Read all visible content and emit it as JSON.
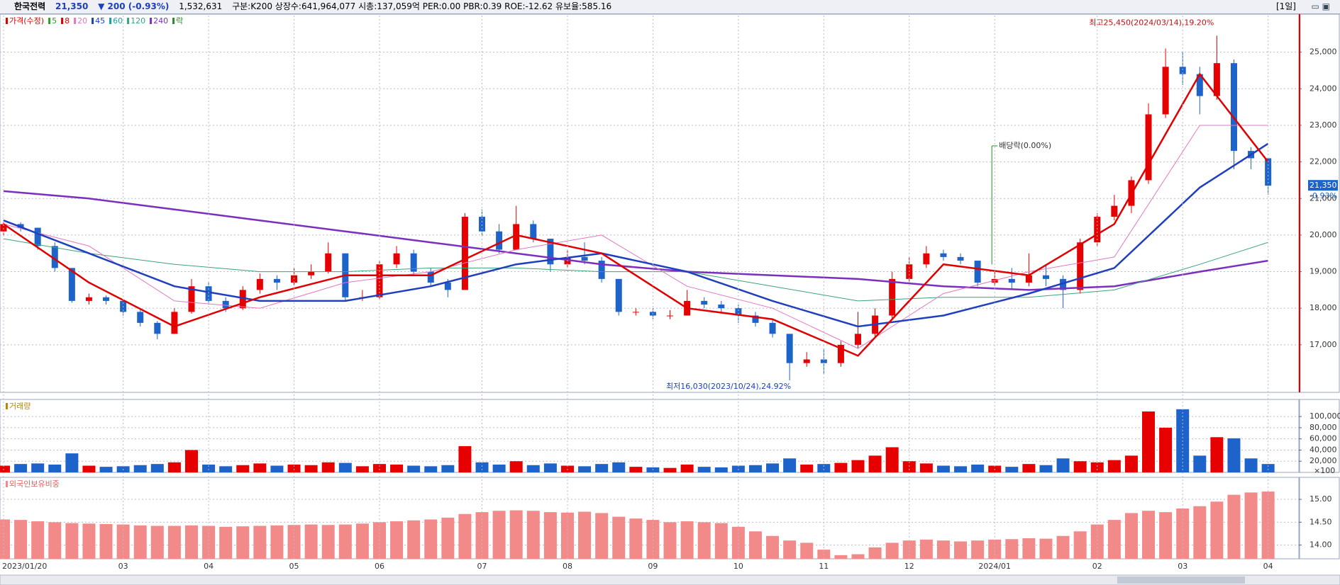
{
  "header": {
    "name": "한국전력",
    "price": "21,350",
    "change": "▼ 200 (-0.93%)",
    "volume": "1,532,631",
    "info": "구분:K200 상장수:641,964,077 시총:137,059억 PER:0.00 PBR:0.39 ROE:-12.62 유보율:585.16",
    "period": "[1일]"
  },
  "chart_data": [
    {
      "type": "candlestick",
      "legend": [
        {
          "label": "가격(수정)",
          "color": "#e00000"
        },
        {
          "label": "5",
          "color": "#2ca02c"
        },
        {
          "label": "8",
          "color": "#e00000"
        },
        {
          "label": "20",
          "color": "#e377c2"
        },
        {
          "label": "45",
          "color": "#1f3fbf"
        },
        {
          "label": "60",
          "color": "#17a2a2"
        },
        {
          "label": "120",
          "color": "#3aa37a"
        },
        {
          "label": "240",
          "color": "#7b2fbf"
        },
        {
          "label": "락",
          "color": "#2a8a2a"
        }
      ],
      "open": [
        20100,
        20300,
        20200,
        19700,
        19100,
        18200,
        18300,
        18200,
        17900,
        17600,
        17300,
        17900,
        18600,
        18200,
        18000,
        18500,
        18800,
        18700,
        18900,
        19000,
        19500,
        18300,
        18300,
        19200,
        19500,
        19000,
        18700,
        18500,
        20500,
        20100,
        19600,
        20300,
        19900,
        19200,
        19400,
        19300,
        18800,
        17900,
        17900,
        17800,
        17800,
        18200,
        18100,
        18000,
        17800,
        17600,
        17300,
        16500,
        16600,
        16500,
        17000,
        17300,
        17800,
        18800,
        19200,
        19500,
        19400,
        19300,
        18700,
        18800,
        18700,
        18900,
        18800,
        18500,
        19800,
        20500,
        20800,
        21500,
        23300,
        24600,
        24400,
        23800,
        24700,
        22300,
        22100
      ],
      "high": [
        20400,
        20350,
        20200,
        19800,
        19100,
        18400,
        18350,
        18250,
        17950,
        17650,
        18000,
        18800,
        18700,
        18300,
        18600,
        18950,
        18900,
        19100,
        19200,
        19800,
        19500,
        18500,
        19300,
        19700,
        19600,
        19100,
        18800,
        20600,
        20700,
        20300,
        20800,
        20400,
        19900,
        19600,
        19800,
        19400,
        18800,
        18000,
        18000,
        17950,
        18500,
        18300,
        18200,
        18100,
        17900,
        17700,
        17300,
        16800,
        16900,
        17100,
        17900,
        18000,
        19000,
        19400,
        19700,
        19600,
        19500,
        19300,
        19000,
        19100,
        19500,
        19200,
        18900,
        19900,
        20600,
        21100,
        21600,
        23600,
        25100,
        25000,
        24600,
        25450,
        24800,
        22400,
        22100
      ],
      "low": [
        20000,
        20100,
        19600,
        19000,
        18150,
        18100,
        18100,
        17800,
        17500,
        17150,
        17300,
        17850,
        18100,
        17900,
        17950,
        18400,
        18500,
        18600,
        18800,
        18950,
        18200,
        18200,
        18250,
        19100,
        18900,
        18600,
        18300,
        18500,
        20000,
        19500,
        19600,
        19800,
        19000,
        19100,
        19200,
        18700,
        17800,
        17800,
        17700,
        17700,
        17800,
        18000,
        17900,
        17600,
        17500,
        17200,
        16030,
        16400,
        16200,
        16400,
        16900,
        17200,
        17700,
        18700,
        19100,
        19300,
        19200,
        18600,
        18600,
        18500,
        18600,
        18600,
        18000,
        18400,
        19700,
        20400,
        20600,
        21400,
        23200,
        24100,
        23300,
        23700,
        21800,
        21800,
        21100
      ],
      "close": [
        20300,
        20200,
        19700,
        19100,
        18200,
        18300,
        18200,
        17900,
        17600,
        17300,
        17900,
        18600,
        18200,
        18000,
        18500,
        18800,
        18700,
        18900,
        19000,
        19500,
        18300,
        18300,
        19200,
        19500,
        19000,
        18700,
        18500,
        20500,
        20100,
        19600,
        20300,
        19900,
        19200,
        19400,
        19300,
        18800,
        17900,
        17900,
        17800,
        17800,
        18200,
        18100,
        18000,
        17800,
        17600,
        17300,
        16500,
        16600,
        16500,
        17000,
        17300,
        17800,
        18800,
        19200,
        19500,
        19400,
        19300,
        18700,
        18800,
        18700,
        18900,
        18800,
        18500,
        19800,
        20500,
        20800,
        21500,
        23300,
        24600,
        24400,
        23800,
        24700,
        22300,
        22100,
        21350
      ],
      "up_color": "#e60000",
      "down_color": "#1d63c9",
      "series": [
        {
          "name": "240",
          "color": "#7b2fbf",
          "line_width": 2.5,
          "x": [
            0,
            5,
            10,
            15,
            20,
            25,
            30,
            35,
            40,
            45,
            50,
            55,
            60,
            65,
            70,
            74
          ],
          "values": [
            21200,
            21000,
            20700,
            20400,
            20100,
            19800,
            19500,
            19200,
            19000,
            18900,
            18800,
            18600,
            18500,
            18600,
            19000,
            19300
          ]
        },
        {
          "name": "120",
          "color": "#3aa37a",
          "line_width": 1,
          "x": [
            0,
            5,
            10,
            15,
            20,
            25,
            30,
            35,
            40,
            45,
            50,
            55,
            60,
            65,
            70,
            74
          ],
          "values": [
            19900,
            19500,
            19200,
            19000,
            19000,
            19100,
            19100,
            19000,
            19000,
            18600,
            18200,
            18300,
            18300,
            18500,
            19200,
            19800
          ]
        },
        {
          "name": "20",
          "color": "#e377c2",
          "line_width": 1,
          "x": [
            0,
            5,
            10,
            15,
            20,
            25,
            30,
            35,
            40,
            45,
            50,
            55,
            60,
            65,
            70,
            74
          ],
          "values": [
            20300,
            19700,
            18200,
            18000,
            18700,
            19000,
            19600,
            20000,
            18600,
            18000,
            16900,
            18400,
            19000,
            19400,
            23000,
            23000
          ]
        },
        {
          "name": "45",
          "color": "#1f3fbf",
          "line_width": 2.5,
          "x": [
            0,
            5,
            10,
            15,
            20,
            25,
            30,
            35,
            40,
            45,
            50,
            55,
            60,
            65,
            70,
            74
          ],
          "values": [
            20400,
            19500,
            18600,
            18200,
            18200,
            18600,
            19200,
            19500,
            19000,
            18200,
            17500,
            17800,
            18400,
            19100,
            21300,
            22500
          ]
        },
        {
          "name": "8",
          "color": "#e00000",
          "line_width": 2.5,
          "x": [
            0,
            5,
            10,
            15,
            20,
            25,
            30,
            35,
            40,
            45,
            50,
            55,
            60,
            65,
            70,
            74
          ],
          "values": [
            20300,
            18700,
            17500,
            18300,
            18900,
            18900,
            20000,
            19500,
            18000,
            17700,
            16700,
            19200,
            18900,
            20300,
            24400,
            22000
          ]
        }
      ],
      "annotations": [
        "최고25,450(2024/03/14),19.20%",
        "최저16,030(2023/10/24),24.92%",
        "배당락(0.00%)"
      ],
      "last_label": "21,350",
      "last_change": "-0.93%",
      "ylim": [
        15700,
        26000
      ],
      "yticks": [
        {
          "value": 17000,
          "label": "17,000"
        },
        {
          "value": 18000,
          "label": "18,000"
        },
        {
          "value": 19000,
          "label": "19,000"
        },
        {
          "value": 20000,
          "label": "20,000"
        },
        {
          "value": 21000,
          "label": "21,000"
        },
        {
          "value": 22000,
          "label": "22,000"
        },
        {
          "value": 23000,
          "label": "23,000"
        },
        {
          "value": 24000,
          "label": "24,000"
        },
        {
          "value": 25000,
          "label": "25,000"
        }
      ],
      "grid": true
    },
    {
      "type": "bar",
      "title": "거래량",
      "values": [
        12000,
        15000,
        16000,
        14000,
        34000,
        12000,
        10000,
        11000,
        13000,
        15000,
        18000,
        40000,
        14000,
        11000,
        13000,
        16000,
        12000,
        14000,
        13000,
        18000,
        17000,
        11000,
        15000,
        14000,
        12000,
        11000,
        13000,
        47000,
        18000,
        14000,
        20000,
        13000,
        16000,
        12000,
        11000,
        15000,
        18000,
        10000,
        9000,
        8000,
        14000,
        10000,
        9000,
        12000,
        13000,
        16000,
        25000,
        14000,
        15000,
        17000,
        22000,
        30000,
        45000,
        20000,
        16000,
        12000,
        11000,
        14000,
        12000,
        10000,
        15000,
        13000,
        25000,
        20000,
        18000,
        22000,
        30000,
        109000,
        80000,
        113000,
        30000,
        63000,
        61000,
        25000,
        15000
      ],
      "unit_label": "×100",
      "ylim": [
        0,
        128000
      ],
      "yticks": [
        {
          "value": 20000,
          "label": "20,000"
        },
        {
          "value": 40000,
          "label": "40,000"
        },
        {
          "value": 60000,
          "label": "60,000"
        },
        {
          "value": 80000,
          "label": "80,000"
        },
        {
          "value": 100000,
          "label": "100,000"
        }
      ],
      "grid": true
    },
    {
      "type": "bar",
      "title": "외국인보유비중",
      "color": "#f28a8a",
      "values": [
        14.56,
        14.55,
        14.52,
        14.5,
        14.48,
        14.47,
        14.46,
        14.45,
        14.43,
        14.42,
        14.42,
        14.43,
        14.42,
        14.4,
        14.41,
        14.42,
        14.43,
        14.44,
        14.45,
        14.44,
        14.45,
        14.47,
        14.5,
        14.52,
        14.54,
        14.56,
        14.6,
        14.68,
        14.72,
        14.75,
        14.76,
        14.75,
        14.72,
        14.71,
        14.73,
        14.7,
        14.62,
        14.58,
        14.55,
        14.5,
        14.52,
        14.5,
        14.48,
        14.4,
        14.3,
        14.2,
        14.1,
        14.05,
        13.9,
        13.78,
        13.8,
        13.95,
        14.05,
        14.1,
        14.12,
        14.1,
        14.08,
        14.1,
        14.12,
        14.13,
        14.15,
        14.14,
        14.2,
        14.3,
        14.45,
        14.55,
        14.7,
        14.75,
        14.72,
        14.8,
        14.85,
        14.95,
        15.1,
        15.15,
        15.17
      ],
      "categories": [
        "2023/01/20",
        null,
        null,
        null,
        null,
        null,
        null,
        "03",
        null,
        null,
        null,
        null,
        "04",
        null,
        null,
        null,
        null,
        "05",
        null,
        null,
        null,
        null,
        "06",
        null,
        null,
        null,
        null,
        null,
        "07",
        null,
        null,
        null,
        null,
        "08",
        null,
        null,
        null,
        null,
        "09",
        null,
        null,
        null,
        null,
        "10",
        null,
        null,
        null,
        null,
        "11",
        null,
        null,
        null,
        null,
        "12",
        null,
        null,
        null,
        null,
        "2024/01",
        null,
        null,
        null,
        null,
        null,
        "02",
        null,
        null,
        null,
        null,
        "03",
        null,
        null,
        null,
        null,
        "04"
      ],
      "ylim": [
        13.7,
        15.45
      ],
      "yticks": [
        {
          "value": 14,
          "label": "14.00"
        },
        {
          "value": 14.5,
          "label": "14.50"
        },
        {
          "value": 15,
          "label": "15.00"
        }
      ],
      "grid": true
    }
  ]
}
